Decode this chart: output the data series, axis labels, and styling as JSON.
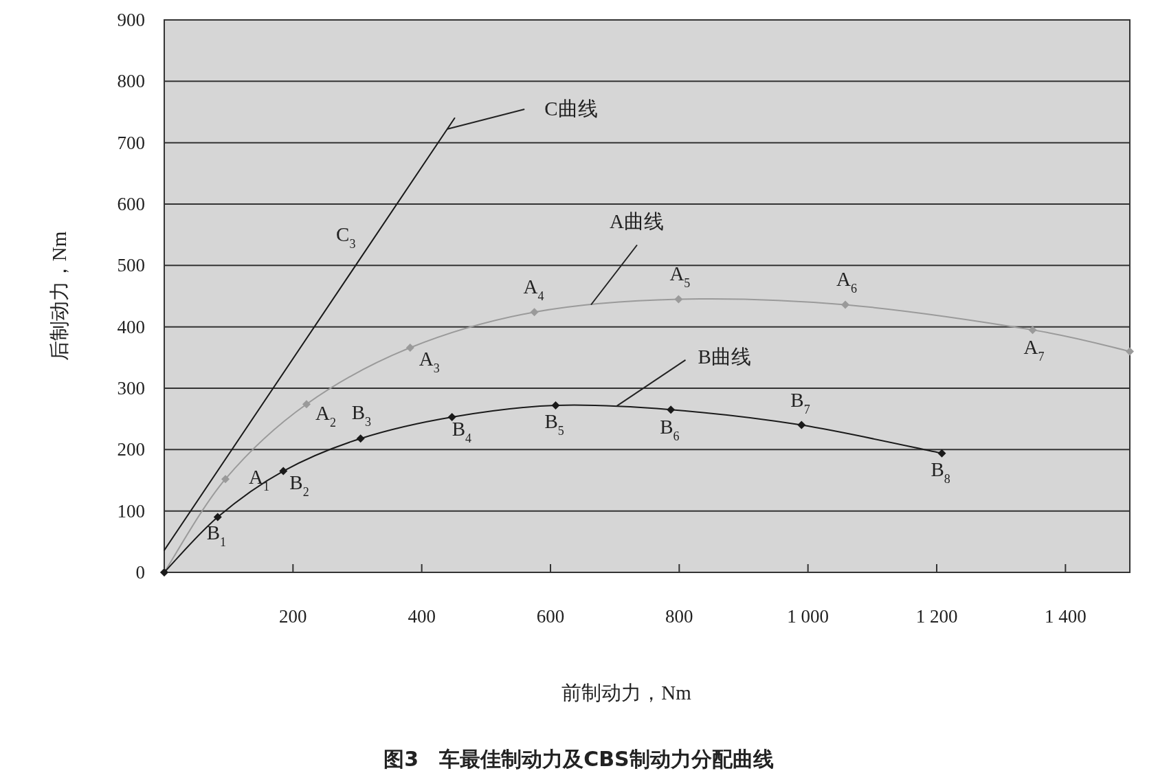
{
  "chart_data": {
    "type": "line",
    "title": "图3　车最佳制动力及CBS制动力分配曲线",
    "xlabel": "前制动力，Nm",
    "ylabel": "后制动力，Nm",
    "xlim": [
      0,
      1500
    ],
    "ylim": [
      0,
      900
    ],
    "xticks": [
      200,
      400,
      600,
      800,
      {
        "value": 1000,
        "label": "1 000"
      },
      {
        "value": 1200,
        "label": "1 200"
      },
      {
        "value": 1400,
        "label": "1 400"
      }
    ],
    "yticks": [
      0,
      100,
      200,
      300,
      400,
      500,
      600,
      700,
      800,
      900
    ],
    "grid": "y",
    "marker": "diamond",
    "line_style": "solid",
    "series": [
      {
        "color": "#9a9a9a",
        "x": [
          0,
          95,
          221,
          382,
          575,
          799,
          1058,
          1349,
          1500
        ],
        "values": [
          0,
          152,
          274,
          366,
          424,
          445,
          436,
          395,
          360
        ]
      },
      {
        "color": "#1a1a1a",
        "x": [
          0,
          83,
          185,
          305,
          447,
          608,
          787,
          990,
          1208
        ],
        "values": [
          0,
          90,
          165,
          218,
          253,
          272,
          265,
          240,
          194
        ]
      },
      {
        "color": "#1a1a1a",
        "marker": "none",
        "x": [
          0,
          451
        ],
        "values": [
          36,
          740
        ]
      }
    ],
    "annotations": [
      {
        "text": "A$_{1}$",
        "x": 95,
        "y": 152
      },
      {
        "text": "A$_{2}$",
        "x": 221,
        "y": 274
      },
      {
        "text": "A$_{3}$",
        "x": 382,
        "y": 366
      },
      {
        "text": "A$_{4}$",
        "x": 575,
        "y": 424
      },
      {
        "text": "A$_{5}$",
        "x": 799,
        "y": 445
      },
      {
        "text": "A$_{6}$",
        "x": 1058,
        "y": 436
      },
      {
        "text": "A$_{7}$",
        "x": 1349,
        "y": 395
      },
      {
        "text": "B$_{1}$",
        "x": 83,
        "y": 90
      },
      {
        "text": "B$_{2}$",
        "x": 185,
        "y": 165
      },
      {
        "text": "B$_{3}$",
        "x": 305,
        "y": 218
      },
      {
        "text": "B$_{4}$",
        "x": 447,
        "y": 253
      },
      {
        "text": "B$_{5}$",
        "x": 608,
        "y": 272
      },
      {
        "text": "B$_{6}$",
        "x": 787,
        "y": 265
      },
      {
        "text": "B$_{7}$",
        "x": 990,
        "y": 240
      },
      {
        "text": "B$_{8}$",
        "x": 1208,
        "y": 194
      },
      {
        "text": "C$_{3}$",
        "x": 330,
        "y": 550
      },
      {
        "text": "C曲线",
        "x": 439,
        "y": 722
      },
      {
        "text": "A曲线",
        "x": 663,
        "y": 436
      },
      {
        "text": "B曲线",
        "x": 703,
        "y": 271
      }
    ]
  }
}
